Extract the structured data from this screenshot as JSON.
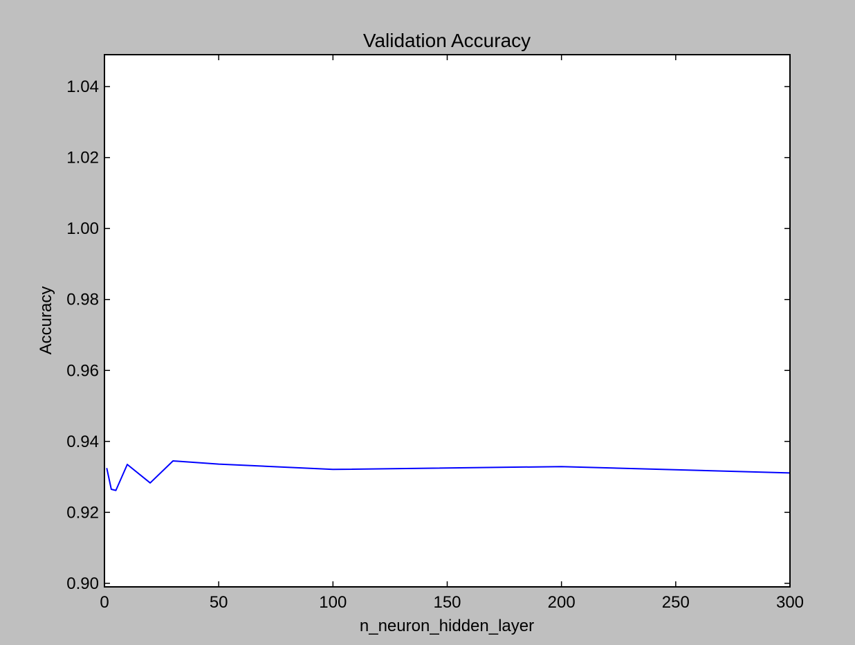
{
  "chart_data": {
    "type": "line",
    "title": "Validation Accuracy",
    "xlabel": "n_neuron_hidden_layer",
    "ylabel": "Accuracy",
    "xlim": [
      0,
      300
    ],
    "ylim": [
      0.899,
      1.049
    ],
    "grid": false,
    "xticks": [
      0,
      50,
      100,
      150,
      200,
      250,
      300
    ],
    "xtick_labels": [
      "0",
      "50",
      "100",
      "150",
      "200",
      "250",
      "300"
    ],
    "yticks": [
      0.9,
      0.92,
      0.94,
      0.96,
      0.98,
      1.0,
      1.02,
      1.04
    ],
    "ytick_labels": [
      "0.90",
      "0.92",
      "0.94",
      "0.96",
      "0.98",
      "1.00",
      "1.02",
      "1.04"
    ],
    "series": [
      {
        "color": "#0000ff",
        "x": [
          1,
          3,
          5,
          10,
          20,
          30,
          50,
          100,
          200,
          300
        ],
        "y": [
          0.9325,
          0.9265,
          0.9262,
          0.9335,
          0.9283,
          0.9345,
          0.9336,
          0.9321,
          0.9329,
          0.9311
        ]
      }
    ]
  }
}
